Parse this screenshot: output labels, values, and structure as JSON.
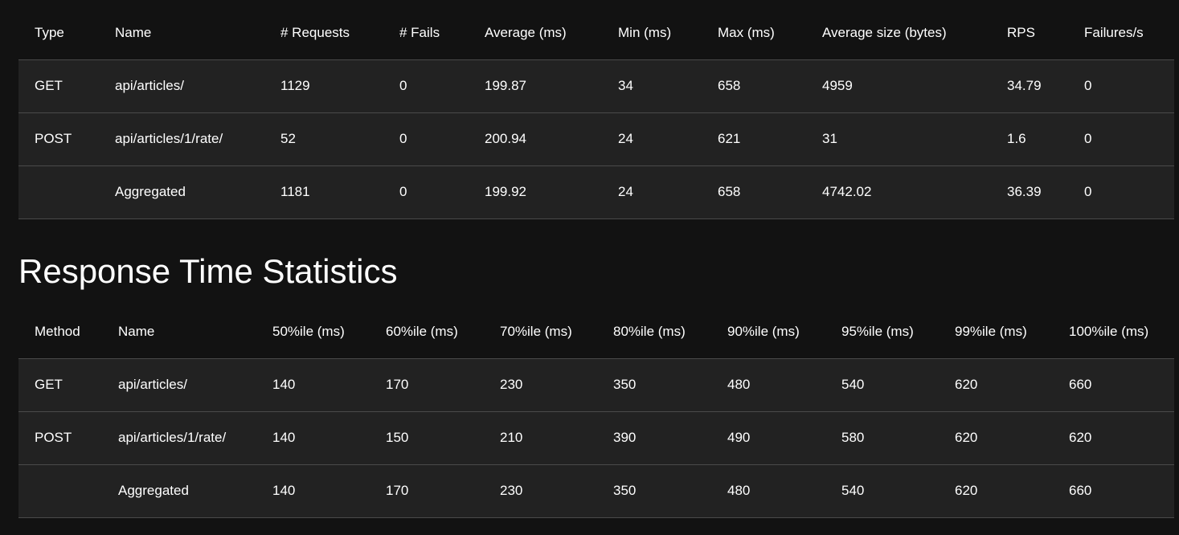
{
  "request_statistics": {
    "headers": [
      "Type",
      "Name",
      "# Requests",
      "# Fails",
      "Average (ms)",
      "Min (ms)",
      "Max (ms)",
      "Average size (bytes)",
      "RPS",
      "Failures/s"
    ],
    "rows": [
      [
        "GET",
        "api/articles/",
        "1129",
        "0",
        "199.87",
        "34",
        "658",
        "4959",
        "34.79",
        "0"
      ],
      [
        "POST",
        "api/articles/1/rate/",
        "52",
        "0",
        "200.94",
        "24",
        "621",
        "31",
        "1.6",
        "0"
      ],
      [
        "",
        "Aggregated",
        "1181",
        "0",
        "199.92",
        "24",
        "658",
        "4742.02",
        "36.39",
        "0"
      ]
    ]
  },
  "response_time_statistics": {
    "title": "Response Time Statistics",
    "headers": [
      "Method",
      "Name",
      "50%ile (ms)",
      "60%ile (ms)",
      "70%ile (ms)",
      "80%ile (ms)",
      "90%ile (ms)",
      "95%ile (ms)",
      "99%ile (ms)",
      "100%ile (ms)"
    ],
    "rows": [
      [
        "GET",
        "api/articles/",
        "140",
        "170",
        "230",
        "350",
        "480",
        "540",
        "620",
        "660"
      ],
      [
        "POST",
        "api/articles/1/rate/",
        "140",
        "150",
        "210",
        "390",
        "490",
        "580",
        "620",
        "620"
      ],
      [
        "",
        "Aggregated",
        "140",
        "170",
        "230",
        "350",
        "480",
        "540",
        "620",
        "660"
      ]
    ]
  },
  "colors": {
    "background": "#121212",
    "row_background": "#222222",
    "divider": "#4a4a4a",
    "text": "#ffffff"
  }
}
